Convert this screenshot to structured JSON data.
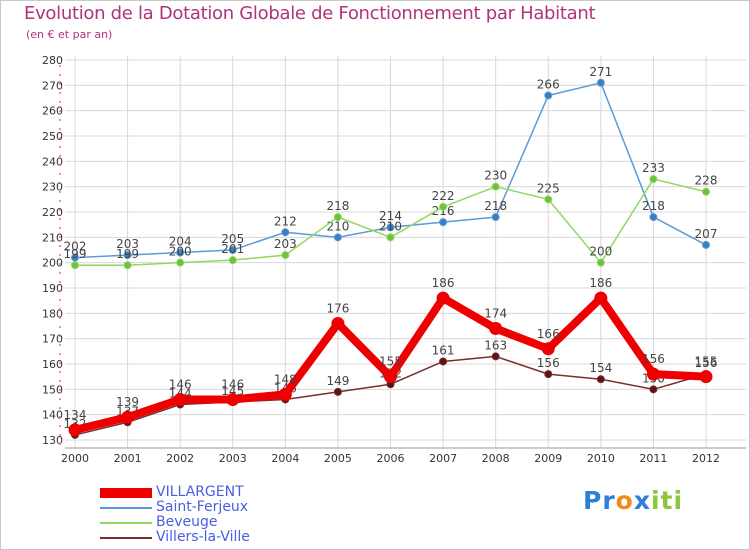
{
  "chart_data": {
    "type": "line",
    "title": "Evolution de la Dotation Globale de Fonctionnement par Habitant",
    "subtitle": "(en € et par an)",
    "categories": [
      "2000",
      "2001",
      "2002",
      "2003",
      "2004",
      "2005",
      "2006",
      "2007",
      "2008",
      "2009",
      "2010",
      "2011",
      "2012"
    ],
    "ylim": [
      130,
      280
    ],
    "yticks": [
      130,
      140,
      150,
      160,
      170,
      180,
      190,
      200,
      210,
      220,
      230,
      240,
      250,
      260,
      270,
      280
    ],
    "grid": true,
    "legend_position": "bottom-left",
    "series": [
      {
        "name": "VILLARGENT",
        "color": "#ee0000",
        "values": [
          134,
          139,
          146,
          146,
          148,
          176,
          155,
          186,
          174,
          166,
          186,
          156,
          155
        ],
        "labels": [
          "134",
          "139",
          "146",
          "146",
          "148",
          "176",
          "155",
          "186",
          "174",
          "166",
          "186",
          "156",
          "155"
        ]
      },
      {
        "name": "Saint-Ferjeux",
        "color": "#5b9bd5",
        "values": [
          202,
          203,
          204,
          205,
          212,
          210,
          214,
          216,
          218,
          266,
          271,
          218,
          207
        ],
        "labels": [
          "202",
          "203",
          "204",
          "205",
          "212",
          "210",
          "214",
          "216",
          "218",
          "266",
          "271",
          "218",
          "207"
        ]
      },
      {
        "name": "Beveuge",
        "color": "#90d860",
        "values": [
          199,
          199,
          200,
          201,
          203,
          218,
          210,
          222,
          230,
          225,
          200,
          233,
          228
        ],
        "labels": [
          "199",
          "199",
          "200",
          "201",
          "203",
          "218",
          "210",
          "222",
          "230",
          "225",
          "200",
          "233",
          "228"
        ]
      },
      {
        "name": "Villers-la-Ville",
        "color": "#7a2d2d",
        "values": [
          132,
          137,
          144,
          145,
          146,
          149,
          152,
          161,
          163,
          156,
          154,
          150,
          156
        ],
        "labels": [
          "132",
          "137",
          "144",
          "145",
          "146",
          "149",
          "152",
          "161",
          "163",
          "156",
          "154",
          "150",
          "156"
        ]
      }
    ]
  },
  "logo": {
    "parts": [
      "Pr",
      "o",
      "x",
      "iti"
    ],
    "colors": [
      "#2b7fd4",
      "#f08c1a",
      "#2b7fd4",
      "#8cc63f"
    ]
  }
}
